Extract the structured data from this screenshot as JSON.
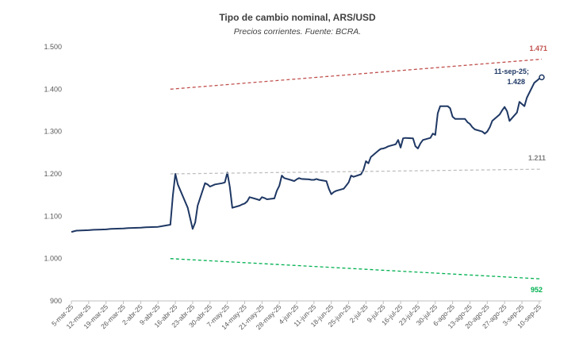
{
  "chart_data": {
    "type": "line",
    "title": "Tipo de cambio nominal, ARS/USD",
    "subtitle": "Precios corrientes. Fuente: BCRA.",
    "xlabel": "",
    "ylabel": "",
    "ylim": [
      900,
      1500
    ],
    "yticks": [
      "900",
      "1.000",
      "1.100",
      "1.200",
      "1.300",
      "1.400",
      "1.500"
    ],
    "x_tick_labels": [
      "5-mar-25",
      "12-mar-25",
      "19-mar-25",
      "26-mar-25",
      "2-abr-25",
      "9-abr-25",
      "16-abr-25",
      "23-abr-25",
      "30-abr-25",
      "7-may-25",
      "14-may-25",
      "21-may-25",
      "28-may-25",
      "4-jun-25",
      "11-jun-25",
      "18-jun-25",
      "25-jun-25",
      "2-jul-25",
      "9-jul-25",
      "16-jul-25",
      "23-jul-25",
      "30-jul-25",
      "6-ago-25",
      "13-ago-25",
      "20-ago-25",
      "27-ago-25",
      "3-sep-25",
      "10-sep-25"
    ],
    "colors": {
      "exchange_rate": "#1f3864",
      "upper_band": "#c0504d",
      "mid_line": "#bfbfbf",
      "lower_band": "#00b050"
    },
    "series": [
      {
        "key": "exchange_rate",
        "x": [
          "2025-03-05",
          "2025-03-07",
          "2025-03-12",
          "2025-03-14",
          "2025-03-19",
          "2025-03-21",
          "2025-03-26",
          "2025-03-28",
          "2025-04-02",
          "2025-04-04",
          "2025-04-09",
          "2025-04-11",
          "2025-04-14",
          "2025-04-15",
          "2025-04-16",
          "2025-04-17",
          "2025-04-21",
          "2025-04-22",
          "2025-04-23",
          "2025-04-24",
          "2025-04-25",
          "2025-04-28",
          "2025-04-29",
          "2025-04-30",
          "2025-05-02",
          "2025-05-05",
          "2025-05-06",
          "2025-05-07",
          "2025-05-08",
          "2025-05-09",
          "2025-05-12",
          "2025-05-13",
          "2025-05-14",
          "2025-05-15",
          "2025-05-16",
          "2025-05-19",
          "2025-05-20",
          "2025-05-21",
          "2025-05-22",
          "2025-05-23",
          "2025-05-26",
          "2025-05-27",
          "2025-05-28",
          "2025-05-29",
          "2025-05-30",
          "2025-06-02",
          "2025-06-03",
          "2025-06-04",
          "2025-06-05",
          "2025-06-06",
          "2025-06-09",
          "2025-06-10",
          "2025-06-11",
          "2025-06-12",
          "2025-06-13",
          "2025-06-16",
          "2025-06-17",
          "2025-06-18",
          "2025-06-19",
          "2025-06-20",
          "2025-06-23",
          "2025-06-24",
          "2025-06-25",
          "2025-06-26",
          "2025-06-27",
          "2025-06-30",
          "2025-07-01",
          "2025-07-02",
          "2025-07-03",
          "2025-07-04",
          "2025-07-07",
          "2025-07-08",
          "2025-07-09",
          "2025-07-10",
          "2025-07-11",
          "2025-07-14",
          "2025-07-15",
          "2025-07-16",
          "2025-07-17",
          "2025-07-18",
          "2025-07-21",
          "2025-07-22",
          "2025-07-23",
          "2025-07-24",
          "2025-07-25",
          "2025-07-28",
          "2025-07-29",
          "2025-07-30",
          "2025-07-31",
          "2025-08-01",
          "2025-08-04",
          "2025-08-05",
          "2025-08-06",
          "2025-08-07",
          "2025-08-08",
          "2025-08-11",
          "2025-08-12",
          "2025-08-13",
          "2025-08-14",
          "2025-08-15",
          "2025-08-18",
          "2025-08-19",
          "2025-08-20",
          "2025-08-21",
          "2025-08-22",
          "2025-08-25",
          "2025-08-26",
          "2025-08-27",
          "2025-08-28",
          "2025-08-29",
          "2025-09-01",
          "2025-09-02",
          "2025-09-03",
          "2025-09-04",
          "2025-09-05",
          "2025-09-08",
          "2025-09-09",
          "2025-09-10",
          "2025-09-11"
        ],
        "y": [
          1063,
          1066,
          1067,
          1068,
          1069,
          1070,
          1071,
          1072,
          1073,
          1074,
          1075,
          1077,
          1080,
          1150,
          1200,
          1175,
          1120,
          1095,
          1070,
          1085,
          1125,
          1178,
          1175,
          1170,
          1175,
          1178,
          1180,
          1203,
          1170,
          1120,
          1125,
          1128,
          1130,
          1135,
          1145,
          1140,
          1138,
          1145,
          1143,
          1140,
          1142,
          1160,
          1172,
          1196,
          1190,
          1185,
          1183,
          1187,
          1190,
          1188,
          1187,
          1186,
          1186,
          1188,
          1186,
          1183,
          1165,
          1152,
          1157,
          1160,
          1165,
          1172,
          1180,
          1196,
          1193,
          1199,
          1210,
          1230,
          1225,
          1240,
          1255,
          1259,
          1260,
          1262,
          1265,
          1270,
          1280,
          1262,
          1284,
          1285,
          1284,
          1265,
          1260,
          1272,
          1280,
          1285,
          1295,
          1292,
          1343,
          1360,
          1360,
          1355,
          1335,
          1330,
          1330,
          1330,
          1322,
          1318,
          1310,
          1305,
          1300,
          1295,
          1300,
          1310,
          1325,
          1340,
          1350,
          1358,
          1348,
          1325,
          1345,
          1370,
          1365,
          1360,
          1380,
          1415,
          1420,
          1425,
          1428
        ]
      },
      {
        "key": "upper_band",
        "x": [
          "2025-04-14",
          "2025-09-11"
        ],
        "y": [
          1400,
          1471
        ]
      },
      {
        "key": "mid_line",
        "x": [
          "2025-04-14",
          "2025-09-11"
        ],
        "y": [
          1200,
          1211
        ]
      },
      {
        "key": "lower_band",
        "x": [
          "2025-04-14",
          "2025-09-11"
        ],
        "y": [
          1000,
          952
        ]
      }
    ],
    "annotations": {
      "last_point": "11-sep-25;",
      "last_value": "1.428",
      "upper_end": "1.471",
      "mid_end": "1.211",
      "lower_end": "952"
    },
    "grid": false,
    "legend": "none"
  }
}
